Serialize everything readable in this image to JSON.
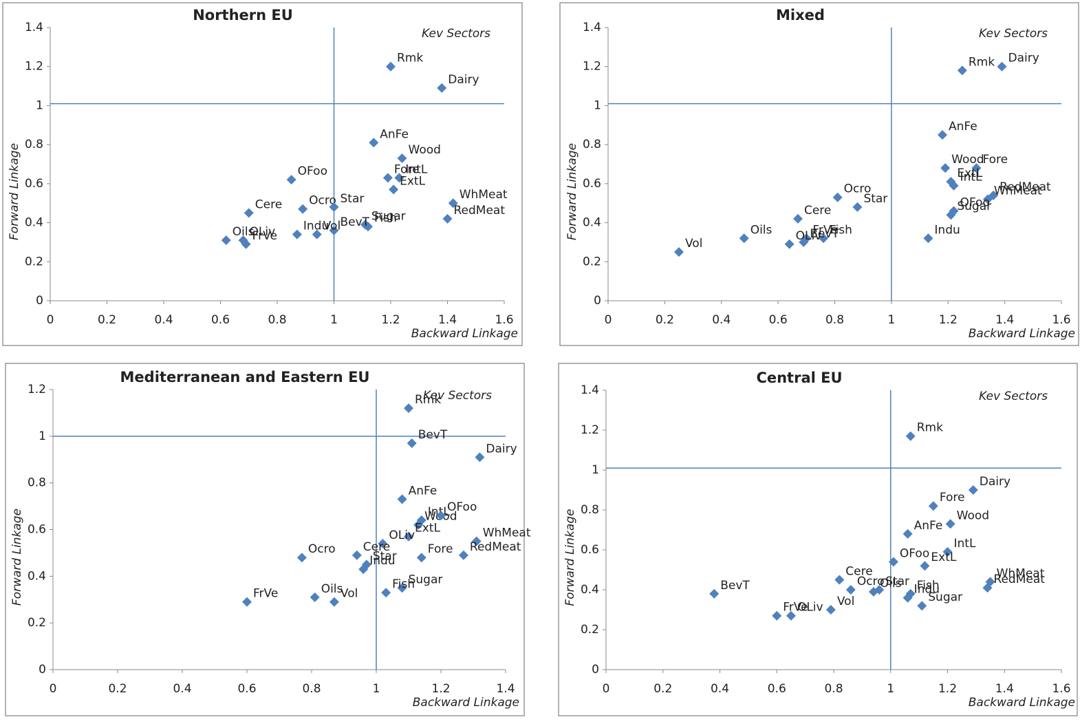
{
  "chart_data": [
    {
      "type": "scatter",
      "title": "Northern EU",
      "x_label": "Backward Linkage",
      "y_label": "Forward Linkage",
      "annotation": "Kev Sectors",
      "color": "#4f81bd",
      "labels": [
        "Rmk",
        "Dairy",
        "AnFe",
        "Wood",
        "Fore",
        "IntL",
        "ExtL",
        "WhMeat",
        "RedMeat",
        "OFoo",
        "Cere",
        "Ocro",
        "Star",
        "Sugar",
        "Fish",
        "BevT",
        "Vol",
        "Indu",
        "Oils",
        "OLiv",
        "FrVe"
      ],
      "x": [
        1.2,
        1.38,
        1.14,
        1.24,
        1.19,
        1.23,
        1.21,
        1.42,
        1.4,
        0.85,
        0.7,
        0.89,
        1.0,
        1.11,
        1.12,
        1.0,
        0.94,
        0.87,
        0.62,
        0.68,
        0.69
      ],
      "values": [
        1.2,
        1.09,
        0.81,
        0.73,
        0.63,
        0.63,
        0.57,
        0.5,
        0.42,
        0.62,
        0.45,
        0.47,
        0.48,
        0.39,
        0.38,
        0.36,
        0.34,
        0.34,
        0.31,
        0.31,
        0.29
      ],
      "vline": 1,
      "hline": 1.01,
      "xlim": [
        0,
        1.6
      ],
      "xticks": [
        0,
        0.2,
        0.4,
        0.6,
        0.8,
        1,
        1.2,
        1.4,
        1.6
      ],
      "ylim": [
        0,
        1.4
      ],
      "yticks": [
        0,
        0.2,
        0.4,
        0.6,
        0.8,
        1,
        1.2,
        1.4
      ]
    },
    {
      "type": "scatter",
      "title": "Mixed",
      "x_label": "Backward Linkage",
      "y_label": "Forward Linkage",
      "annotation": "Kev Sectors",
      "color": "#4f81bd",
      "labels": [
        "Dairy",
        "Rmk",
        "AnFe",
        "Wood",
        "Fore",
        "ExtL",
        "IntL",
        "RedMeat",
        "WhMeat",
        "OFoo",
        "Sugar",
        "Indu",
        "Ocro",
        "Star",
        "Cere",
        "FrVe",
        "Fish",
        "BevT",
        "Oils",
        "OLiv",
        "Vol"
      ],
      "x": [
        1.39,
        1.25,
        1.18,
        1.19,
        1.3,
        1.21,
        1.22,
        1.36,
        1.34,
        1.22,
        1.21,
        1.13,
        0.81,
        0.88,
        0.67,
        0.7,
        0.76,
        0.69,
        0.48,
        0.64,
        0.25
      ],
      "values": [
        1.2,
        1.18,
        0.85,
        0.68,
        0.68,
        0.61,
        0.59,
        0.54,
        0.52,
        0.46,
        0.44,
        0.32,
        0.53,
        0.48,
        0.42,
        0.32,
        0.32,
        0.3,
        0.32,
        0.29,
        0.25
      ],
      "vline": 1,
      "hline": 1.01,
      "xlim": [
        0,
        1.6
      ],
      "xticks": [
        0,
        0.2,
        0.4,
        0.6,
        0.8,
        1,
        1.2,
        1.4,
        1.6
      ],
      "ylim": [
        0,
        1.4
      ],
      "yticks": [
        0,
        0.2,
        0.4,
        0.6,
        0.8,
        1,
        1.2,
        1.4
      ]
    },
    {
      "type": "scatter",
      "title": "Mediterranean and Eastern EU",
      "x_label": "Backward Linkage",
      "y_label": "Forward Linkage",
      "annotation": "Kev Sectors",
      "color": "#4f81bd",
      "labels": [
        "Rmk",
        "BevT",
        "Dairy",
        "AnFe",
        "IntL",
        "Wood",
        "OFoo",
        "ExtL",
        "WhMeat",
        "RedMeat",
        "Fore",
        "OLiv",
        "Cere",
        "Star",
        "Indu",
        "Sugar",
        "Fish",
        "Ocro",
        "Oils",
        "Vol",
        "FrVe"
      ],
      "x": [
        1.1,
        1.11,
        1.32,
        1.08,
        1.14,
        1.13,
        1.2,
        1.1,
        1.31,
        1.27,
        1.14,
        1.02,
        0.94,
        0.97,
        0.96,
        1.08,
        1.03,
        0.77,
        0.81,
        0.87,
        0.6
      ],
      "values": [
        1.12,
        0.97,
        0.91,
        0.73,
        0.64,
        0.62,
        0.66,
        0.57,
        0.55,
        0.49,
        0.48,
        0.54,
        0.49,
        0.45,
        0.43,
        0.35,
        0.33,
        0.48,
        0.31,
        0.29,
        0.29
      ],
      "vline": 1,
      "hline": 1,
      "xlim": [
        0,
        1.4
      ],
      "xticks": [
        0,
        0.2,
        0.4,
        0.6,
        0.8,
        1,
        1.2,
        1.4
      ],
      "ylim": [
        0,
        1.2
      ],
      "yticks": [
        0,
        0.2,
        0.4,
        0.6,
        0.8,
        1,
        1.2
      ]
    },
    {
      "type": "scatter",
      "title": "Central EU",
      "x_label": "Backward Linkage",
      "y_label": "Forward Linkage",
      "annotation": "Kev Sectors",
      "color": "#4f81bd",
      "labels": [
        "Rmk",
        "Dairy",
        "Fore",
        "Wood",
        "AnFe",
        "IntL",
        "OFoo",
        "ExtL",
        "WhMeat",
        "RedMeat",
        "Cere",
        "Ocro",
        "Star",
        "Oils",
        "Fish",
        "Indu",
        "Sugar",
        "Vol",
        "BevT",
        "OLiv",
        "FrVe"
      ],
      "x": [
        1.07,
        1.29,
        1.15,
        1.21,
        1.06,
        1.2,
        1.01,
        1.12,
        1.35,
        1.34,
        0.82,
        0.86,
        0.96,
        0.94,
        1.07,
        1.06,
        1.11,
        0.79,
        0.38,
        0.65,
        0.6
      ],
      "values": [
        1.17,
        0.9,
        0.82,
        0.73,
        0.68,
        0.59,
        0.54,
        0.52,
        0.44,
        0.41,
        0.45,
        0.4,
        0.4,
        0.39,
        0.38,
        0.36,
        0.32,
        0.3,
        0.38,
        0.27,
        0.27
      ],
      "vline": 1,
      "hline": 1.01,
      "xlim": [
        0,
        1.6
      ],
      "xticks": [
        0,
        0.2,
        0.4,
        0.6,
        0.8,
        1,
        1.2,
        1.4,
        1.6
      ],
      "ylim": [
        0,
        1.4
      ],
      "yticks": [
        0,
        0.2,
        0.4,
        0.6,
        0.8,
        1,
        1.2,
        1.4
      ]
    }
  ]
}
